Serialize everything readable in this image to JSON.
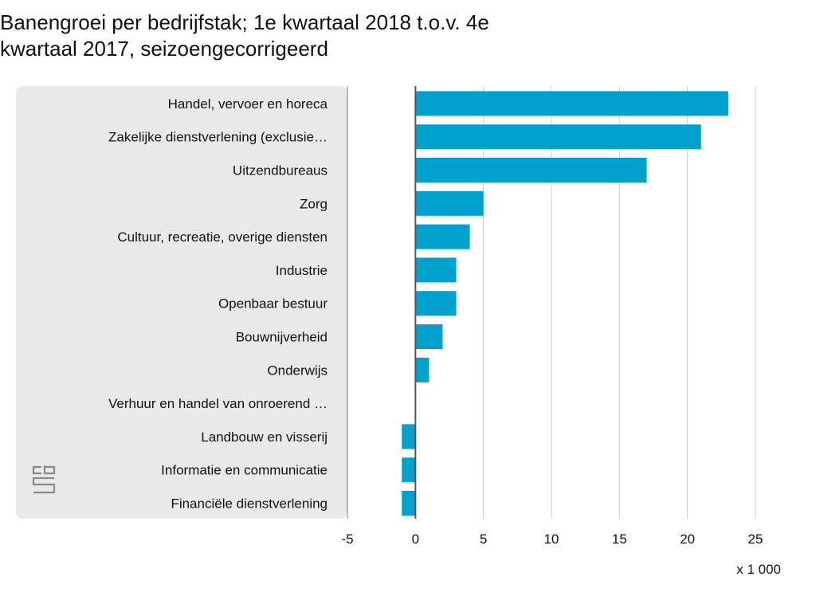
{
  "chart_data": {
    "type": "bar",
    "orientation": "horizontal",
    "title": "Banengroei per bedrijfstak; 1e kwartaal 2018 t.o.v. 4e kwartaal 2017, seizoengecorrigeerd",
    "title_lines": [
      "  Banengroei per bedrijfstak; 1e kwartaal 2018 t.o.v. 4e",
      "kwartaal 2017, seizoengecorrigeerd"
    ],
    "categories": [
      "Handel, vervoer en horeca",
      "Zakelijke dienstverlening (exclusie…",
      "Uitzendbureaus",
      "Zorg",
      "Cultuur, recreatie, overige diensten",
      "Industrie",
      "Openbaar bestuur",
      "Bouwnijverheid",
      "Onderwijs",
      "Verhuur en handel van onroerend …",
      "Landbouw en visserij",
      "Informatie en communicatie",
      "Financiële dienstverlening"
    ],
    "values": [
      23,
      21,
      17,
      5,
      4,
      3,
      3,
      2,
      1,
      0,
      -1,
      -1,
      -1
    ],
    "xlim": [
      -5,
      25
    ],
    "xticks": [
      -5,
      0,
      5,
      10,
      15,
      20,
      25
    ],
    "xtick_labels": [
      "-5",
      "0",
      "5",
      "10",
      "15",
      "20",
      "25"
    ],
    "unit_label": "x 1 000",
    "grid": true,
    "bar_color": "#00a1cd",
    "label_panel_color": "#e9e9e9",
    "grid_color": "#cccccc",
    "zero_line_color": "#555555"
  },
  "logo": {
    "name": "cbs"
  }
}
